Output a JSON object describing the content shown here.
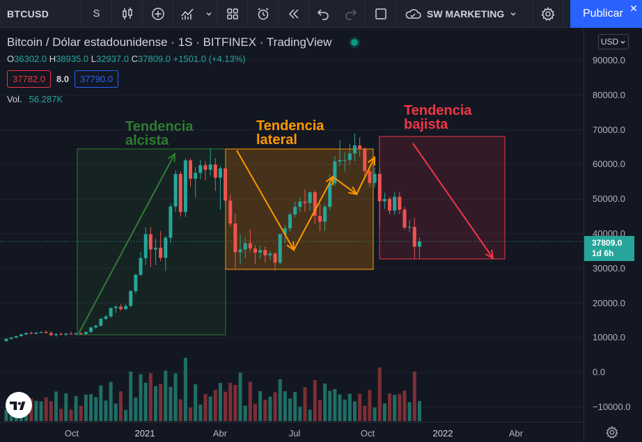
{
  "toolbar": {
    "symbol": "BTCUSD",
    "interval": "S",
    "layout_name": "SW MARKETING",
    "publish_label": "Publicar",
    "close_glyph": "✕"
  },
  "legend": {
    "title": "Bitcoin / Dólar estadounidense · 1S · BITFINEX · TradingView",
    "ohlc": {
      "o_label": "O",
      "o": "36302.0",
      "h_label": "H",
      "h": "38935.0",
      "l_label": "L",
      "l": "32937.0",
      "c_label": "C",
      "c": "37809.0",
      "change": "+1501.0 (+4.13%)"
    },
    "bid": "37782.0",
    "spread": "8.0",
    "ask": "37790.0",
    "volume_label": "Vol.",
    "volume": "56.287K"
  },
  "price_axis": {
    "currency": "USD",
    "labels": [
      "90000.0",
      "80000.0",
      "70000.0",
      "60000.0",
      "50000.0",
      "40000.0",
      "30000.0",
      "20000.0",
      "10000.0",
      "0.0",
      "−10000.0"
    ],
    "current_price": "37809.0",
    "countdown": "1d 6h"
  },
  "time_axis": {
    "labels": [
      "Oct",
      "2021",
      "Abr",
      "Jul",
      "Oct",
      "2022",
      "Abr"
    ]
  },
  "annotations": [
    {
      "text": "Tendencia\nalcista",
      "color": "#2e7d32"
    },
    {
      "text": "Tendencia\nlateral",
      "color": "#ff9800"
    },
    {
      "text": "Tendencia\nbajista",
      "color": "#f23645"
    }
  ],
  "colors": {
    "up": "#26a69a",
    "down": "#ef5350",
    "bg": "#131722",
    "accent": "#2962ff"
  },
  "icons": [
    "interval-icon",
    "candles-icon",
    "add-indicator-icon",
    "indicators-icon",
    "layout-grid-icon",
    "alert-icon",
    "replay-icon",
    "undo-icon",
    "redo-icon",
    "fullscreen-icon",
    "cloud-icon",
    "gear-icon"
  ],
  "chart_data": {
    "type": "candlestick",
    "symbol": "BTCUSD",
    "interval": "1S",
    "ylim": [
      -10000,
      90000
    ],
    "x_ticks": [
      "Oct",
      "2021",
      "Abr",
      "Jul",
      "Oct",
      "2022",
      "Abr"
    ],
    "candles": [
      {
        "o": 9100,
        "h": 9900,
        "l": 8800,
        "c": 9700
      },
      {
        "o": 9700,
        "h": 10200,
        "l": 9500,
        "c": 10100
      },
      {
        "o": 10100,
        "h": 10600,
        "l": 9900,
        "c": 10500
      },
      {
        "o": 10500,
        "h": 11200,
        "l": 10300,
        "c": 11000
      },
      {
        "o": 11000,
        "h": 11600,
        "l": 10800,
        "c": 11400
      },
      {
        "o": 11400,
        "h": 11800,
        "l": 11000,
        "c": 11200
      },
      {
        "o": 11200,
        "h": 11700,
        "l": 11000,
        "c": 11500
      },
      {
        "o": 11500,
        "h": 12000,
        "l": 11200,
        "c": 11700
      },
      {
        "o": 11700,
        "h": 12100,
        "l": 11300,
        "c": 11400
      },
      {
        "o": 11400,
        "h": 11900,
        "l": 10500,
        "c": 10800
      },
      {
        "o": 10800,
        "h": 11400,
        "l": 10300,
        "c": 11100
      },
      {
        "o": 11100,
        "h": 11600,
        "l": 10700,
        "c": 10900
      },
      {
        "o": 10900,
        "h": 11400,
        "l": 10500,
        "c": 11200
      },
      {
        "o": 11200,
        "h": 11800,
        "l": 10900,
        "c": 11000
      },
      {
        "o": 11000,
        "h": 11500,
        "l": 10800,
        "c": 11300
      },
      {
        "o": 11300,
        "h": 11700,
        "l": 10900,
        "c": 11100
      },
      {
        "o": 11100,
        "h": 11900,
        "l": 10900,
        "c": 11700
      },
      {
        "o": 11700,
        "h": 13200,
        "l": 11400,
        "c": 13000
      },
      {
        "o": 13000,
        "h": 13900,
        "l": 12700,
        "c": 13500
      },
      {
        "o": 13500,
        "h": 15800,
        "l": 13200,
        "c": 15500
      },
      {
        "o": 15500,
        "h": 16600,
        "l": 15100,
        "c": 16200
      },
      {
        "o": 16200,
        "h": 18800,
        "l": 15700,
        "c": 18600
      },
      {
        "o": 18600,
        "h": 19400,
        "l": 17200,
        "c": 19000
      },
      {
        "o": 19000,
        "h": 19700,
        "l": 17800,
        "c": 18300
      },
      {
        "o": 18300,
        "h": 19800,
        "l": 18000,
        "c": 19200
      },
      {
        "o": 19200,
        "h": 23800,
        "l": 18900,
        "c": 23500
      },
      {
        "o": 23500,
        "h": 28500,
        "l": 22800,
        "c": 28200
      },
      {
        "o": 28200,
        "h": 34800,
        "l": 27800,
        "c": 33000
      },
      {
        "o": 33000,
        "h": 41900,
        "l": 31000,
        "c": 39900
      },
      {
        "o": 39900,
        "h": 41900,
        "l": 30300,
        "c": 35500
      },
      {
        "o": 35500,
        "h": 38600,
        "l": 31000,
        "c": 36000
      },
      {
        "o": 36000,
        "h": 40800,
        "l": 32100,
        "c": 33100
      },
      {
        "o": 33100,
        "h": 39500,
        "l": 29300,
        "c": 38900
      },
      {
        "o": 38900,
        "h": 48700,
        "l": 37400,
        "c": 47900
      },
      {
        "o": 47900,
        "h": 58300,
        "l": 46200,
        "c": 57300
      },
      {
        "o": 57300,
        "h": 58100,
        "l": 45000,
        "c": 46300
      },
      {
        "o": 46300,
        "h": 61700,
        "l": 44900,
        "c": 61200
      },
      {
        "o": 61200,
        "h": 61800,
        "l": 53600,
        "c": 55900
      },
      {
        "o": 55900,
        "h": 59300,
        "l": 50500,
        "c": 57600
      },
      {
        "o": 57600,
        "h": 61400,
        "l": 55800,
        "c": 59800
      },
      {
        "o": 59800,
        "h": 61000,
        "l": 55500,
        "c": 58500
      },
      {
        "o": 58500,
        "h": 64800,
        "l": 56800,
        "c": 60000
      },
      {
        "o": 60000,
        "h": 61800,
        "l": 52400,
        "c": 56200
      },
      {
        "o": 56200,
        "h": 59600,
        "l": 47000,
        "c": 58900
      },
      {
        "o": 58900,
        "h": 59500,
        "l": 48500,
        "c": 49600
      },
      {
        "o": 49600,
        "h": 51300,
        "l": 42000,
        "c": 43000
      },
      {
        "o": 43000,
        "h": 45800,
        "l": 30000,
        "c": 34700
      },
      {
        "o": 34700,
        "h": 39800,
        "l": 31100,
        "c": 35500
      },
      {
        "o": 35500,
        "h": 39000,
        "l": 33100,
        "c": 37300
      },
      {
        "o": 37300,
        "h": 41300,
        "l": 34800,
        "c": 35800
      },
      {
        "o": 35800,
        "h": 36700,
        "l": 31300,
        "c": 34600
      },
      {
        "o": 34600,
        "h": 36500,
        "l": 32800,
        "c": 35300
      },
      {
        "o": 35300,
        "h": 36400,
        "l": 31700,
        "c": 33800
      },
      {
        "o": 33800,
        "h": 35000,
        "l": 32400,
        "c": 34300
      },
      {
        "o": 34300,
        "h": 34800,
        "l": 29300,
        "c": 31700
      },
      {
        "o": 31700,
        "h": 40000,
        "l": 31100,
        "c": 39900
      },
      {
        "o": 39900,
        "h": 42600,
        "l": 37400,
        "c": 41600
      },
      {
        "o": 41600,
        "h": 46200,
        "l": 40600,
        "c": 45600
      },
      {
        "o": 45600,
        "h": 49400,
        "l": 44700,
        "c": 47800
      },
      {
        "o": 47800,
        "h": 50500,
        "l": 46200,
        "c": 49300
      },
      {
        "o": 49300,
        "h": 52900,
        "l": 46400,
        "c": 48900
      },
      {
        "o": 48900,
        "h": 51900,
        "l": 46600,
        "c": 52000
      },
      {
        "o": 52000,
        "h": 52700,
        "l": 42900,
        "c": 45200
      },
      {
        "o": 45200,
        "h": 48800,
        "l": 40800,
        "c": 43500
      },
      {
        "o": 43500,
        "h": 48500,
        "l": 40800,
        "c": 47800
      },
      {
        "o": 47800,
        "h": 57100,
        "l": 47000,
        "c": 54600
      },
      {
        "o": 54600,
        "h": 62500,
        "l": 53900,
        "c": 60900
      },
      {
        "o": 60900,
        "h": 67000,
        "l": 59600,
        "c": 61300
      },
      {
        "o": 61300,
        "h": 63700,
        "l": 58000,
        "c": 61300
      },
      {
        "o": 61300,
        "h": 66000,
        "l": 60000,
        "c": 63200
      },
      {
        "o": 63200,
        "h": 69000,
        "l": 61000,
        "c": 65500
      },
      {
        "o": 65500,
        "h": 67800,
        "l": 62300,
        "c": 64400
      },
      {
        "o": 64400,
        "h": 65000,
        "l": 55600,
        "c": 58100
      },
      {
        "o": 58100,
        "h": 59800,
        "l": 53500,
        "c": 54700
      },
      {
        "o": 54700,
        "h": 59200,
        "l": 53300,
        "c": 57300
      },
      {
        "o": 57300,
        "h": 59000,
        "l": 42000,
        "c": 49400
      },
      {
        "o": 49400,
        "h": 51900,
        "l": 47200,
        "c": 50100
      },
      {
        "o": 50100,
        "h": 50700,
        "l": 45600,
        "c": 46700
      },
      {
        "o": 46700,
        "h": 52100,
        "l": 45500,
        "c": 50700
      },
      {
        "o": 50700,
        "h": 52100,
        "l": 45700,
        "c": 47000
      },
      {
        "o": 47000,
        "h": 47900,
        "l": 41200,
        "c": 41800
      },
      {
        "o": 41800,
        "h": 44000,
        "l": 40500,
        "c": 42000
      },
      {
        "o": 42000,
        "h": 44500,
        "l": 32900,
        "c": 36300
      },
      {
        "o": 36300,
        "h": 38935,
        "l": 32937,
        "c": 37809
      }
    ],
    "volume_max": 15000
  }
}
